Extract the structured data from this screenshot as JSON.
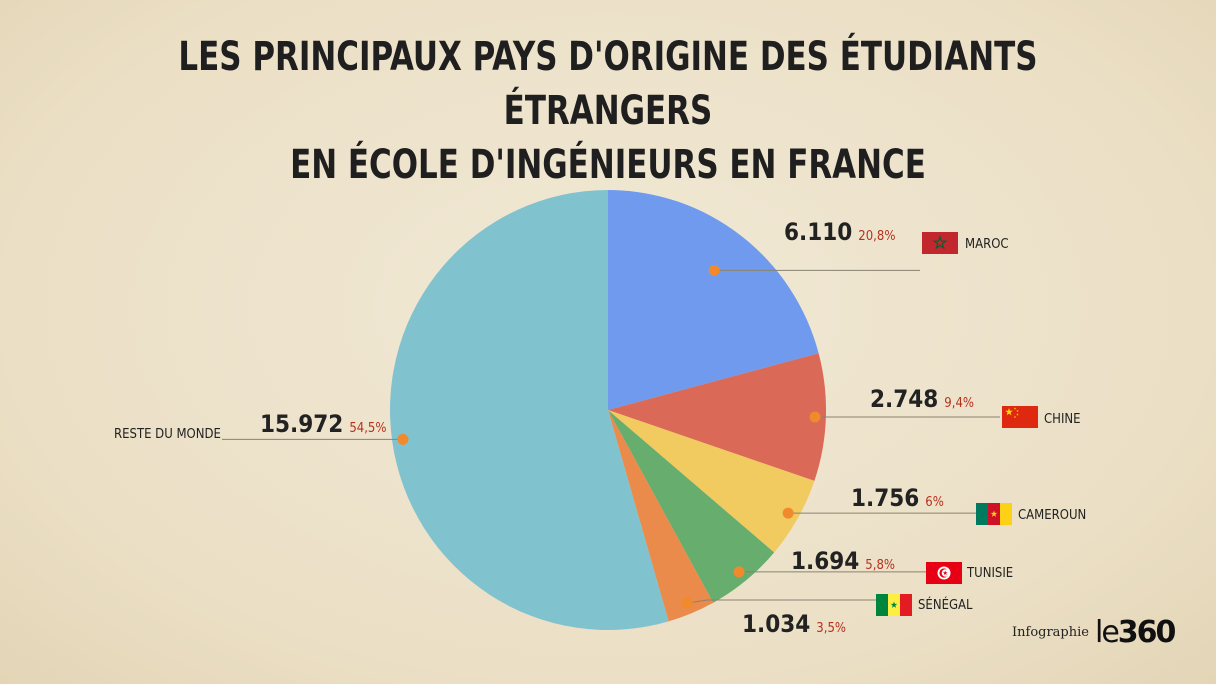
{
  "title": {
    "line1": "LES PRINCIPAUX PAYS D'ORIGINE DES ÉTUDIANTS ÉTRANGERS",
    "line2": "EN ÉCOLE D'INGÉNIEURS EN FRANCE"
  },
  "chart_data": {
    "type": "pie",
    "title": "LES PRINCIPAUX PAYS D'ORIGINE DES ÉTUDIANTS ÉTRANGERS EN ÉCOLE D'INGÉNIEURS EN FRANCE",
    "slices": [
      {
        "label": "MAROC",
        "value": 6110,
        "value_label": "6.110",
        "percent_label": "20,8%",
        "color": "#6f9aee",
        "flag": "morocco"
      },
      {
        "label": "CHINE",
        "value": 2748,
        "value_label": "2.748",
        "percent_label": "9,4%",
        "color": "#da6957",
        "flag": "china"
      },
      {
        "label": "CAMEROUN",
        "value": 1756,
        "value_label": "1.756",
        "percent_label": "6%",
        "color": "#f1ca60",
        "flag": "cameroon"
      },
      {
        "label": "TUNISIE",
        "value": 1694,
        "value_label": "1.694",
        "percent_label": "5,8%",
        "color": "#67ad6d",
        "flag": "tunisia"
      },
      {
        "label": "SÉNÉGAL",
        "value": 1034,
        "value_label": "1.034",
        "percent_label": "3,5%",
        "color": "#ea8a4b",
        "flag": "senegal"
      },
      {
        "label": "RESTE DU MONDE",
        "value": 15972,
        "value_label": "15.972",
        "percent_label": "54,5%",
        "color": "#80c2ce",
        "flag": null
      }
    ],
    "start_angle": "12 o'clock",
    "direction": "clockwise",
    "marker_color": "#f08a2c",
    "percent_color": "#b4321e",
    "value_color": "#222222"
  },
  "credit": {
    "label": "Infographie",
    "logo_prefix": "le",
    "logo_suffix": "360"
  }
}
